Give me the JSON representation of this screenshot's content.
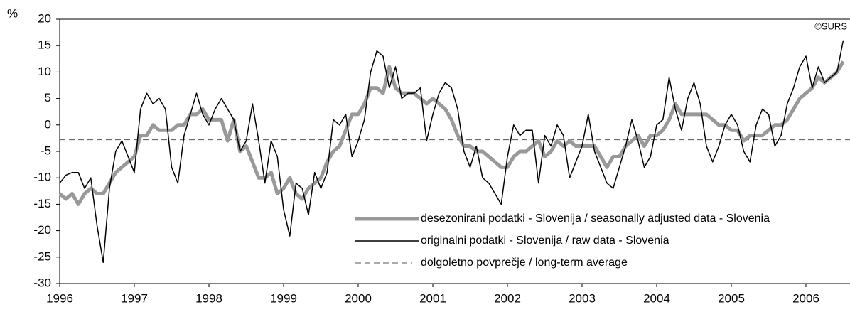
{
  "chart_data": {
    "type": "line",
    "y_label": "%",
    "annotation": "©SURS",
    "categories": [
      "1996",
      null,
      null,
      null,
      null,
      null,
      null,
      null,
      null,
      null,
      null,
      null,
      "1997",
      null,
      null,
      null,
      null,
      null,
      null,
      null,
      null,
      null,
      null,
      null,
      "1998",
      null,
      null,
      null,
      null,
      null,
      null,
      null,
      null,
      null,
      null,
      null,
      "1999",
      null,
      null,
      null,
      null,
      null,
      null,
      null,
      null,
      null,
      null,
      null,
      "2000",
      null,
      null,
      null,
      null,
      null,
      null,
      null,
      null,
      null,
      null,
      null,
      "2001",
      null,
      null,
      null,
      null,
      null,
      null,
      null,
      null,
      null,
      null,
      null,
      "2002",
      null,
      null,
      null,
      null,
      null,
      null,
      null,
      null,
      null,
      null,
      null,
      "2003",
      null,
      null,
      null,
      null,
      null,
      null,
      null,
      null,
      null,
      null,
      null,
      "2004",
      null,
      null,
      null,
      null,
      null,
      null,
      null,
      null,
      null,
      null,
      null,
      "2005",
      null,
      null,
      null,
      null,
      null,
      null,
      null,
      null,
      null,
      null,
      null,
      "2006",
      null,
      null,
      null,
      null,
      null,
      null
    ],
    "series": [
      {
        "name": "desezonirani podatki - Slovenija / seasonally adjusted data - Slovenia",
        "color": "#999999",
        "width": 5,
        "values": [
          -13,
          -14,
          -13,
          -15,
          -13,
          -12,
          -13,
          -13,
          -11,
          -9,
          -8,
          -7,
          -6,
          -2,
          -2,
          0,
          -1,
          -1,
          -1,
          0,
          0,
          2,
          2,
          3,
          1,
          1,
          1,
          -3,
          1,
          -5,
          -4,
          -7,
          -10,
          -10,
          -9,
          -13,
          -12,
          -10,
          -13,
          -14,
          -12,
          -11,
          -10,
          -7,
          -5,
          -4,
          -1,
          2,
          2,
          4,
          7,
          7,
          6,
          11,
          7,
          6,
          6,
          6,
          5,
          4,
          5,
          4,
          3,
          1,
          -2,
          -4,
          -4,
          -5,
          -5,
          -6,
          -7,
          -8,
          -8,
          -6,
          -5,
          -5,
          -4,
          -3,
          -6,
          -5,
          -3,
          -4,
          -3,
          -4,
          -4,
          -4,
          -4,
          -6,
          -8,
          -6,
          -6,
          -4,
          -3,
          -2,
          -4,
          -2,
          -2,
          -1,
          1,
          4,
          2,
          2,
          2,
          2,
          2,
          1,
          0,
          0,
          -1,
          -1,
          -3,
          -2,
          -2,
          -2,
          -1,
          0,
          0,
          1,
          3,
          5,
          6,
          7,
          9,
          8,
          9,
          10,
          12
        ]
      },
      {
        "name": "originalni podatki - Slovenija / raw data - Slovenia",
        "color": "#000000",
        "width": 1.5,
        "values": [
          -11,
          -9.5,
          -9,
          -9,
          -12,
          -10,
          -19,
          -26,
          -12,
          -5,
          -3,
          -6,
          -9,
          3,
          6,
          4,
          5,
          3,
          -8,
          -11,
          -2,
          2,
          6,
          2,
          0,
          3,
          5,
          3,
          1,
          -5,
          -3,
          4,
          -3,
          -11,
          -3,
          -6,
          -16,
          -21,
          -11,
          -12,
          -17,
          -9,
          -12,
          -9,
          1,
          0,
          2,
          -6,
          -3,
          1,
          10,
          14,
          13,
          7,
          11,
          5,
          6,
          6,
          7,
          -3,
          2,
          6,
          8,
          7,
          3,
          -5,
          -8,
          -4,
          -10,
          -11,
          -13,
          -15,
          -6,
          0,
          -2,
          -1,
          -1,
          -11,
          -2,
          -4,
          0,
          -2,
          -10,
          -7,
          -4,
          2,
          -5,
          -8,
          -11,
          -12,
          -8,
          -4,
          1,
          -3,
          -8,
          -6,
          0,
          1,
          9,
          3,
          -1,
          5,
          8,
          4,
          -4,
          -7,
          -4,
          0,
          2,
          0,
          -5,
          -7,
          0,
          3,
          2,
          -4,
          -2,
          4,
          7,
          11,
          13,
          7,
          11,
          8,
          9,
          10,
          16
        ]
      }
    ],
    "reference_line": {
      "name": "dolgoletno povprečje / long-term average",
      "value": -2.8,
      "color": "#555555"
    },
    "ylim": [
      -30,
      20
    ],
    "yticks": [
      -30,
      -25,
      -20,
      -15,
      -10,
      -5,
      0,
      5,
      10,
      15,
      20
    ],
    "grid": false
  }
}
